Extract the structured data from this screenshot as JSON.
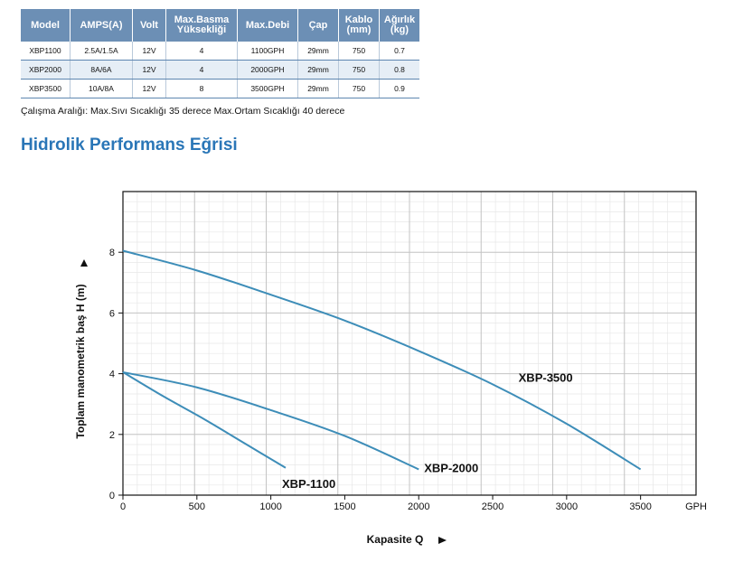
{
  "spec_table": {
    "headers": [
      "Model",
      "AMPS(A)",
      "Volt",
      "Max.Basma\nYüksekliği",
      "Max.Debi",
      "Çap",
      "Kablo\n(mm)",
      "Ağırlık\n(kg)"
    ],
    "rows": [
      [
        "XBP1100",
        "2.5A/1.5A",
        "12V",
        "4",
        "1100GPH",
        "29mm",
        "750",
        "0.7"
      ],
      [
        "XBP2000",
        "8A/6A",
        "12V",
        "4",
        "2000GPH",
        "29mm",
        "750",
        "0.8"
      ],
      [
        "XBP3500",
        "10A/8A",
        "12V",
        "8",
        "3500GPH",
        "29mm",
        "750",
        "0.9"
      ]
    ],
    "header_color": "#6c8fb5"
  },
  "note": "Çalışma Aralığı: Max.Sıvı Sıcaklığı 35 derece  Max.Ortam Sıcaklığı 40 derece",
  "section_title": "Hidrolik Performans Eğrisi",
  "chart_data": {
    "type": "line",
    "title": "",
    "xlabel": "Kapasite Q",
    "ylabel": "Toplam manometrik baş H (m)",
    "x_unit": "GPH",
    "xlim": [
      0,
      3875
    ],
    "ylim": [
      0,
      10
    ],
    "x_ticks": [
      0,
      500,
      1000,
      1500,
      2000,
      2500,
      3000,
      3500
    ],
    "y_ticks": [
      0,
      2,
      4,
      6,
      8
    ],
    "grid": true,
    "line_color": "#3d8db8",
    "series": [
      {
        "name": "XBP-1100",
        "x": [
          0,
          275,
          550,
          825,
          1100
        ],
        "y": [
          4.05,
          3.25,
          2.5,
          1.7,
          0.9
        ]
      },
      {
        "name": "XBP-2000",
        "x": [
          0,
          500,
          1000,
          1500,
          2000
        ],
        "y": [
          4.05,
          3.55,
          2.8,
          1.95,
          0.85
        ]
      },
      {
        "name": "XBP-3500",
        "x": [
          0,
          500,
          1000,
          1500,
          2000,
          2500,
          3000,
          3500
        ],
        "y": [
          8.05,
          7.4,
          6.6,
          5.75,
          4.75,
          3.65,
          2.35,
          0.85
        ]
      }
    ]
  }
}
